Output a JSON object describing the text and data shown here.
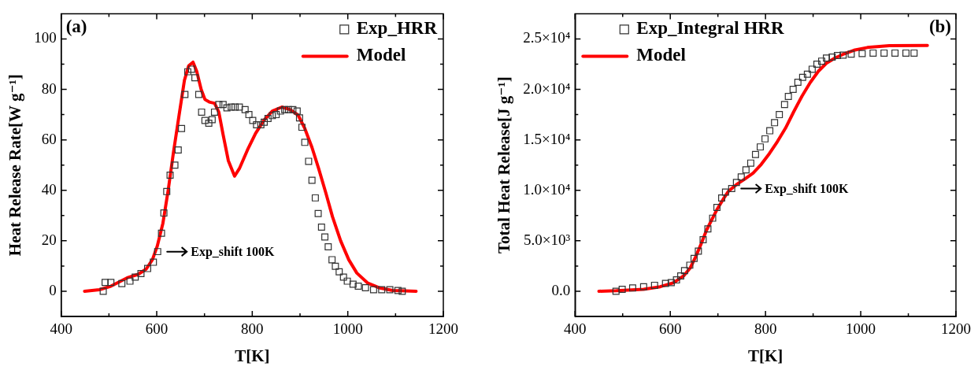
{
  "chart_data": [
    {
      "type": "scatter",
      "xlabel": "T[K]",
      "ylabel": "Heat Release Rate[W g⁻¹]",
      "xlim": [
        400,
        1200
      ],
      "ylim": [
        -10,
        110
      ],
      "xticks": [
        400,
        {
          "value": 500,
          "label": null
        },
        600,
        {
          "value": 700,
          "label": null
        },
        800,
        {
          "value": 900,
          "label": null
        },
        1000,
        {
          "value": 1100,
          "label": null
        },
        1200
      ],
      "yticks": [
        0,
        {
          "value": 10,
          "label": null
        },
        20,
        {
          "value": 30,
          "label": null
        },
        40,
        {
          "value": 50,
          "label": null
        },
        60,
        {
          "value": 70,
          "label": null
        },
        80,
        {
          "value": 90,
          "label": null
        },
        100
      ],
      "grid": false,
      "legend": "top right",
      "annotations": [
        "(a)",
        {
          "text": "Exp_shift 100K",
          "x": 602,
          "y": 15.7
        }
      ],
      "series": [
        {
          "name": "Exp_HRR",
          "type": "scatter",
          "marker": "square",
          "color": "#333333",
          "x": [
            488,
            492,
            504,
            527,
            544,
            555,
            567,
            581,
            593,
            602,
            610,
            615,
            621,
            628,
            638,
            645,
            652,
            659,
            665,
            673,
            680,
            688,
            694,
            701,
            709,
            716,
            721,
            730,
            739,
            747,
            756,
            764,
            773,
            785,
            793,
            801,
            809,
            818,
            825,
            833,
            842,
            850,
            859,
            868,
            876,
            885,
            894,
            899,
            904,
            910,
            918,
            925,
            932,
            938,
            945,
            952,
            959,
            967,
            974,
            982,
            991,
            999,
            1011,
            1022,
            1037,
            1054,
            1071,
            1088,
            1105,
            1114
          ],
          "values": [
            0,
            3.5,
            3.5,
            3,
            4,
            5.6,
            7,
            9,
            11.5,
            15.7,
            23,
            31,
            39.5,
            46,
            50,
            56,
            64.5,
            78,
            87,
            88,
            84.6,
            78,
            71,
            67.7,
            66.6,
            68,
            71,
            74,
            74,
            72.7,
            73,
            73,
            73,
            72,
            70,
            67.7,
            66,
            66,
            67,
            68.5,
            69.6,
            70,
            71.4,
            72,
            72,
            72,
            71.4,
            68.7,
            65,
            59,
            51.5,
            44,
            37,
            30.8,
            25.4,
            21.5,
            17.6,
            12.5,
            9.9,
            7.7,
            5.6,
            4,
            2.8,
            2,
            1.4,
            0.6,
            0.6,
            0.6,
            0.3,
            0
          ]
        },
        {
          "name": "Model",
          "type": "line",
          "marker": "none",
          "line_style": "solid",
          "color": "#ff0000",
          "x": [
            449,
            480,
            504,
            538,
            561,
            578,
            591,
            601,
            613,
            624,
            635,
            647,
            658,
            667,
            676,
            684,
            693,
            701,
            710,
            721,
            730,
            739,
            750,
            763,
            773,
            790,
            807,
            825,
            842,
            862,
            879,
            896,
            910,
            925,
            939,
            954,
            968,
            985,
            1002,
            1019,
            1042,
            1065,
            1094,
            1143
          ],
          "values": [
            0,
            0.6,
            2,
            5.3,
            6.7,
            8.8,
            12.5,
            17.8,
            27,
            40,
            55,
            70,
            83.6,
            89.4,
            90.8,
            87,
            80,
            76,
            75,
            74.5,
            71,
            62,
            51.7,
            45.6,
            48.6,
            56,
            62.6,
            67.9,
            71.4,
            73,
            72,
            69.8,
            64.5,
            57,
            48.6,
            39,
            29.5,
            20,
            12.5,
            7.2,
            3.2,
            1.4,
            0.3,
            0
          ]
        }
      ]
    },
    {
      "type": "scatter",
      "xlabel": "T[K]",
      "ylabel": "Total Heat Release[J g⁻¹]",
      "xlim": [
        400,
        1200
      ],
      "ylim": [
        -2500,
        27500
      ],
      "xticks": [
        400,
        {
          "value": 500,
          "label": null
        },
        600,
        {
          "value": 700,
          "label": null
        },
        800,
        {
          "value": 900,
          "label": null
        },
        1000,
        {
          "value": 1100,
          "label": null
        },
        1200
      ],
      "yticks": [
        {
          "value": 0,
          "label": "0.0"
        },
        {
          "value": 2500,
          "label": null
        },
        {
          "value": 5000,
          "label": "5.0×10³"
        },
        {
          "value": 7500,
          "label": null
        },
        {
          "value": 10000,
          "label": "1.0×10⁴"
        },
        {
          "value": 12500,
          "label": null
        },
        {
          "value": 15000,
          "label": "1.5×10⁴"
        },
        {
          "value": 17500,
          "label": null
        },
        {
          "value": 20000,
          "label": "2.0×10⁴"
        },
        {
          "value": 22500,
          "label": null
        },
        {
          "value": 25000,
          "label": "2.5×10⁴"
        }
      ],
      "grid": false,
      "legend": "top left",
      "annotations": [
        "(b)",
        {
          "text": "Exp_shift 100K",
          "x": 729,
          "y": 10170
        }
      ],
      "series": [
        {
          "name": "Exp_Integral HRR",
          "type": "scatter",
          "marker": "square",
          "color": "#333333",
          "x": [
            486,
            499,
            521,
            544,
            567,
            590,
            602,
            613,
            622,
            630,
            641,
            650,
            659,
            669,
            679,
            689,
            698,
            708,
            716,
            729,
            739,
            749,
            759,
            769,
            779,
            789,
            799,
            809,
            819,
            829,
            840,
            848,
            858,
            868,
            878,
            888,
            898,
            908,
            918,
            928,
            940,
            951,
            963,
            980,
            1003,
            1026,
            1049,
            1072,
            1095,
            1112
          ],
          "values": [
            0,
            190,
            320,
            450,
            590,
            770,
            850,
            1120,
            1520,
            2050,
            2580,
            3250,
            3970,
            5110,
            6180,
            7240,
            8310,
            9240,
            9820,
            10170,
            10780,
            11320,
            12030,
            12700,
            13550,
            14300,
            15100,
            15900,
            16700,
            17500,
            18500,
            19300,
            20000,
            20700,
            21200,
            21500,
            22000,
            22500,
            22800,
            23100,
            23200,
            23350,
            23400,
            23500,
            23550,
            23600,
            23600,
            23600,
            23600,
            23600
          ]
        },
        {
          "name": "Model",
          "type": "line",
          "marker": "none",
          "line_style": "solid",
          "color": "#ff0000",
          "x": [
            450,
            487,
            544,
            579,
            607,
            628,
            642,
            653,
            665,
            676,
            688,
            699,
            711,
            722,
            739,
            756,
            774,
            791,
            808,
            825,
            842,
            859,
            877,
            894,
            911,
            928,
            945,
            963,
            986,
            1014,
            1060,
            1140
          ],
          "values": [
            0,
            50,
            190,
            450,
            850,
            1520,
            2320,
            3380,
            4710,
            6040,
            7160,
            8170,
            9110,
            9900,
            10570,
            11100,
            11710,
            12570,
            13630,
            14830,
            16160,
            17760,
            19360,
            20690,
            21800,
            22600,
            23080,
            23480,
            23880,
            24150,
            24330,
            24360
          ]
        }
      ]
    }
  ]
}
